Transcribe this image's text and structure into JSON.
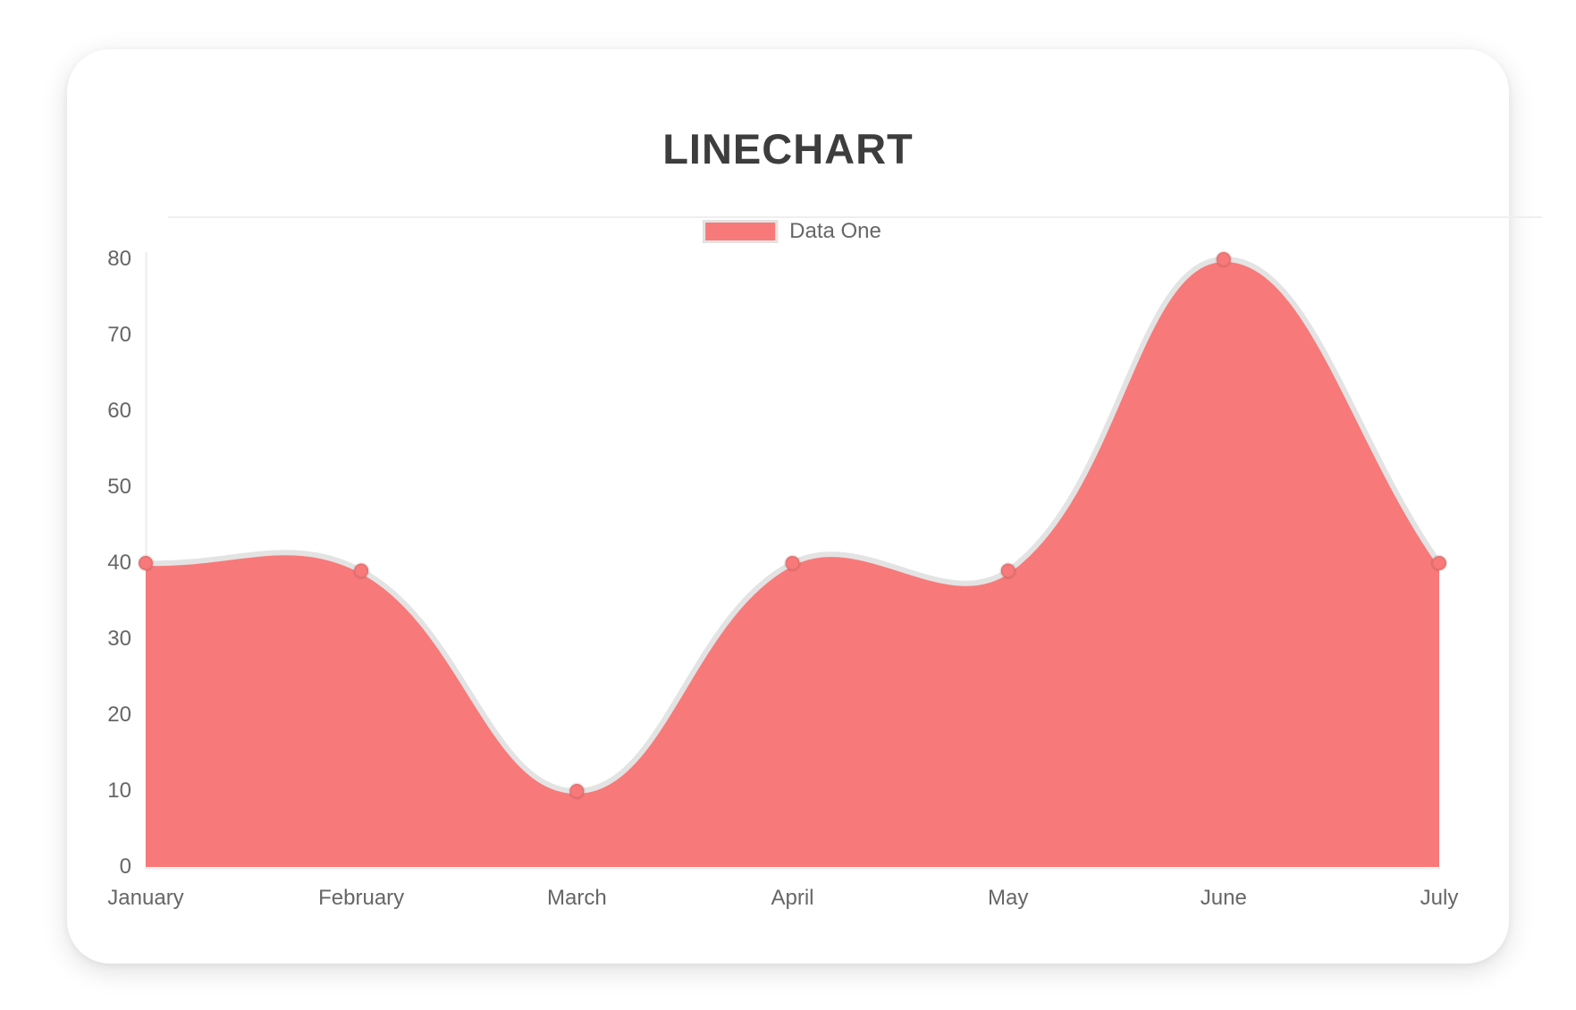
{
  "card": {
    "title": "LINECHART"
  },
  "chart_data": {
    "type": "area",
    "title": "LINECHART",
    "categories": [
      "January",
      "February",
      "March",
      "April",
      "May",
      "June",
      "July"
    ],
    "series": [
      {
        "name": "Data One",
        "values": [
          40,
          39,
          10,
          40,
          39,
          80,
          40
        ]
      }
    ],
    "ylim": [
      0,
      80
    ],
    "yticks": [
      0,
      10,
      20,
      30,
      40,
      50,
      60,
      70,
      80
    ],
    "grid": false,
    "legend_position": "top-center",
    "line_tension": 0.4,
    "colors": {
      "fill": "#f87979",
      "point": "#f87979",
      "point_border": "rgba(0,0,0,0.08)",
      "line": "#e3e3e3",
      "axis": "#ececec",
      "tick_text": "#666666",
      "title_text": "#3d3d3d",
      "card_background": "#ffffff"
    }
  }
}
